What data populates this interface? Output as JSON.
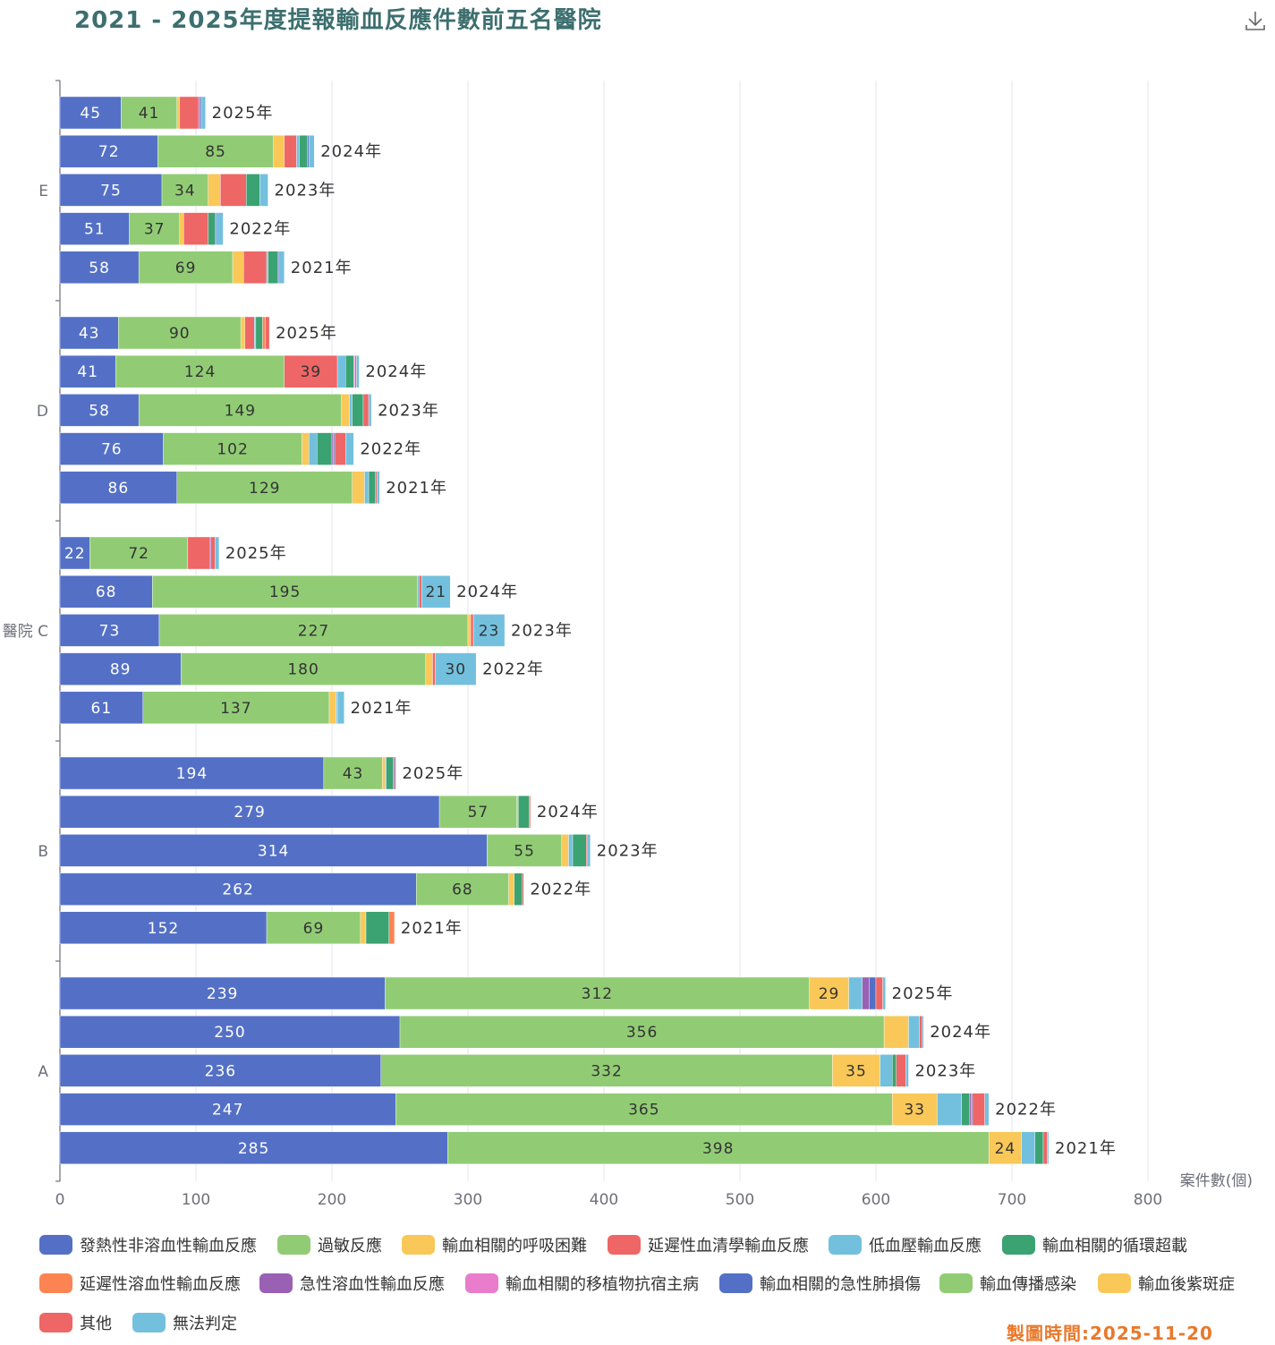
{
  "header": {
    "title": "2021 - 2025年度提報輸血反應件數前五名醫院",
    "download_icon": "download-icon"
  },
  "footer": {
    "timestamp": "製圖時間:2025-11-20"
  },
  "chart_data": {
    "type": "bar",
    "orientation": "horizontal",
    "stacked": true,
    "title": "2021 - 2025年度提報輸血反應件數前五名醫院",
    "xlabel": "案件數(個)",
    "ylabel": "醫院",
    "xlim": [
      0,
      800
    ],
    "xticks": [
      0,
      100,
      200,
      300,
      400,
      500,
      600,
      700,
      800
    ],
    "grid": true,
    "legend_position": "bottom",
    "hospitals": [
      "E",
      "D",
      "C",
      "B",
      "A"
    ],
    "years": [
      "2025年",
      "2024年",
      "2023年",
      "2022年",
      "2021年"
    ],
    "series": [
      {
        "name": "發熱性非溶血性輸血反應",
        "color": "#5470c6"
      },
      {
        "name": "過敏反應",
        "color": "#91cc75"
      },
      {
        "name": "輸血相關的呼吸困難",
        "color": "#fac858"
      },
      {
        "name": "延遲性血清學輸血反應",
        "color": "#ee6666"
      },
      {
        "name": "低血壓輸血反應",
        "color": "#73c0de"
      },
      {
        "name": "輸血相關的循環超載",
        "color": "#3ba272"
      },
      {
        "name": "延遲性溶血性輸血反應",
        "color": "#fc8452"
      },
      {
        "name": "急性溶血性輸血反應",
        "color": "#9a60b4"
      },
      {
        "name": "輸血相關的移植物抗宿主病",
        "color": "#ea7ccc"
      },
      {
        "name": "輸血相關的急性肺損傷",
        "color": "#5470c6"
      },
      {
        "name": "輸血傳播感染",
        "color": "#91cc75"
      },
      {
        "name": "輸血後紫斑症",
        "color": "#fac858"
      },
      {
        "name": "其他",
        "color": "#ee6666"
      },
      {
        "name": "無法判定",
        "color": "#73c0de"
      }
    ],
    "rows": [
      {
        "hospital": "E",
        "year": "2025年",
        "values": [
          45,
          41,
          2,
          14,
          0,
          0,
          0,
          1,
          0,
          1,
          0,
          0,
          0,
          3
        ]
      },
      {
        "hospital": "E",
        "year": "2024年",
        "values": [
          72,
          85,
          8,
          9,
          2,
          6,
          0,
          0,
          0,
          1,
          0,
          0,
          0,
          4
        ]
      },
      {
        "hospital": "E",
        "year": "2023年",
        "values": [
          75,
          34,
          9,
          19,
          0,
          10,
          0,
          0,
          0,
          0,
          0,
          0,
          0,
          6
        ]
      },
      {
        "hospital": "E",
        "year": "2022年",
        "values": [
          51,
          37,
          3,
          18,
          0,
          5,
          0,
          0,
          0,
          1,
          0,
          0,
          0,
          5
        ]
      },
      {
        "hospital": "E",
        "year": "2021年",
        "values": [
          58,
          69,
          8,
          17,
          1,
          7,
          0,
          0,
          0,
          1,
          0,
          0,
          0,
          4
        ]
      },
      {
        "hospital": "D",
        "year": "2025年",
        "values": [
          43,
          90,
          3,
          7,
          1,
          5,
          2,
          0,
          0,
          0,
          0,
          0,
          3,
          0
        ]
      },
      {
        "hospital": "D",
        "year": "2024年",
        "values": [
          41,
          124,
          0,
          39,
          6,
          6,
          0,
          0,
          1,
          0,
          0,
          0,
          1,
          2
        ]
      },
      {
        "hospital": "D",
        "year": "2023年",
        "values": [
          58,
          149,
          6,
          0,
          2,
          8,
          0,
          0,
          0,
          0,
          0,
          0,
          4,
          2
        ]
      },
      {
        "hospital": "D",
        "year": "2022年",
        "values": [
          76,
          102,
          5,
          0,
          6,
          11,
          0,
          1,
          0,
          1,
          0,
          0,
          8,
          6
        ]
      },
      {
        "hospital": "D",
        "year": "2021年",
        "values": [
          86,
          129,
          9,
          0,
          3,
          5,
          0,
          0,
          0,
          0,
          0,
          0,
          1,
          2
        ]
      },
      {
        "hospital": "C",
        "year": "2025年",
        "values": [
          22,
          72,
          0,
          16,
          0,
          0,
          0,
          1,
          0,
          0,
          0,
          0,
          3,
          3
        ]
      },
      {
        "hospital": "C",
        "year": "2024年",
        "values": [
          68,
          195,
          0,
          0,
          1,
          0,
          0,
          0,
          0,
          0,
          0,
          0,
          2,
          21
        ]
      },
      {
        "hospital": "C",
        "year": "2023年",
        "values": [
          73,
          227,
          2,
          0,
          0,
          0,
          0,
          0,
          0,
          0,
          0,
          0,
          2,
          23
        ]
      },
      {
        "hospital": "C",
        "year": "2022年",
        "values": [
          89,
          180,
          5,
          0,
          0,
          0,
          0,
          0,
          0,
          0,
          0,
          0,
          2,
          30
        ]
      },
      {
        "hospital": "C",
        "year": "2021年",
        "values": [
          61,
          137,
          5,
          0,
          1,
          0,
          0,
          0,
          0,
          0,
          0,
          0,
          0,
          5
        ]
      },
      {
        "hospital": "B",
        "year": "2025年",
        "values": [
          194,
          43,
          2,
          0,
          1,
          5,
          0,
          0,
          0,
          1,
          0,
          0,
          1,
          0
        ]
      },
      {
        "hospital": "B",
        "year": "2024年",
        "values": [
          279,
          57,
          1,
          0,
          0,
          8,
          0,
          0,
          0,
          0,
          0,
          0,
          1,
          0
        ]
      },
      {
        "hospital": "B",
        "year": "2023年",
        "values": [
          314,
          55,
          5,
          0,
          3,
          10,
          0,
          0,
          0,
          0,
          0,
          0,
          1,
          2
        ]
      },
      {
        "hospital": "B",
        "year": "2022年",
        "values": [
          262,
          68,
          4,
          0,
          0,
          6,
          0,
          0,
          0,
          0,
          0,
          0,
          1,
          0
        ]
      },
      {
        "hospital": "B",
        "year": "2021年",
        "values": [
          152,
          69,
          4,
          0,
          0,
          17,
          4,
          0,
          0,
          0,
          0,
          0,
          0,
          0
        ]
      },
      {
        "hospital": "A",
        "year": "2025年",
        "values": [
          239,
          312,
          29,
          0,
          10,
          0,
          0,
          5,
          0,
          5,
          0,
          0,
          5,
          2
        ]
      },
      {
        "hospital": "A",
        "year": "2024年",
        "values": [
          250,
          356,
          18,
          0,
          8,
          0,
          0,
          0,
          0,
          0,
          0,
          0,
          2,
          1
        ]
      },
      {
        "hospital": "A",
        "year": "2023年",
        "values": [
          236,
          332,
          35,
          0,
          9,
          3,
          0,
          0,
          0,
          0,
          0,
          0,
          7,
          2
        ]
      },
      {
        "hospital": "A",
        "year": "2022年",
        "values": [
          247,
          365,
          33,
          0,
          18,
          6,
          0,
          1,
          0,
          1,
          0,
          0,
          9,
          3
        ]
      },
      {
        "hospital": "A",
        "year": "2021年",
        "values": [
          285,
          398,
          24,
          0,
          10,
          6,
          0,
          0,
          0,
          0,
          0,
          0,
          3,
          1
        ]
      }
    ],
    "label_min_value": 20
  }
}
